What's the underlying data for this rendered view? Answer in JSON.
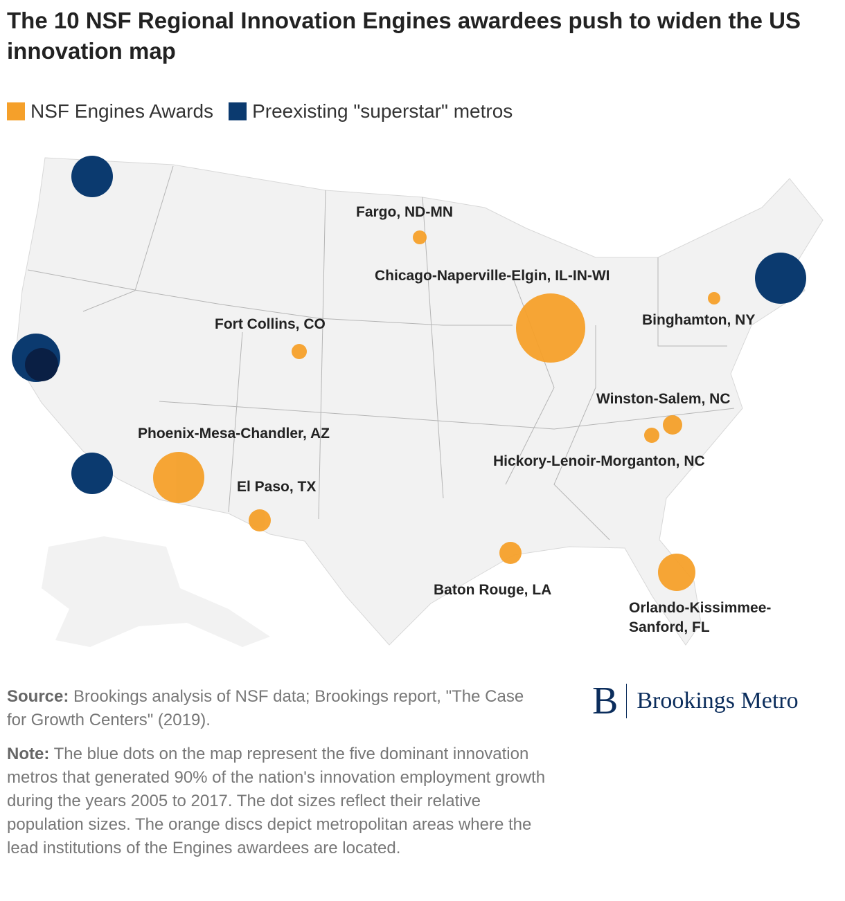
{
  "title": "The 10 NSF Regional Innovation Engines awardees push to widen the US innovation map",
  "legend": [
    {
      "label": "NSF Engines Awards",
      "color": "#f5a02a"
    },
    {
      "label": "Preexisting \"superstar\" metros",
      "color": "#0b3a6f"
    }
  ],
  "awardees": [
    "Fargo, ND-MN",
    "Chicago-Naperville-Elgin, IL-IN-WI",
    "Fort Collins, CO",
    "Binghamton, NY",
    "Winston-Salem, NC",
    "Hickory-Lenoir-Morganton, NC",
    "Phoenix-Mesa-Chandler, AZ",
    "El Paso, TX",
    "Baton Rouge, LA",
    [
      "Orlando-Kissimmee-",
      "Sanford, FL"
    ]
  ],
  "source": {
    "label": "Source:",
    "text": "Brookings analysis of NSF data; Brookings report, \"The Case for Growth Centers\" (2019)."
  },
  "note": {
    "label": "Note:",
    "text": "The blue dots on the map represent the five dominant innovation metros that generated 90% of the nation's innovation employment growth during the years 2005 to 2017. The dot sizes reflect their relative population sizes. The orange discs depict metropolitan areas where the lead institutions of the Engines awardees are located."
  },
  "logo": {
    "mark": "B",
    "text": "Brookings Metro"
  }
}
